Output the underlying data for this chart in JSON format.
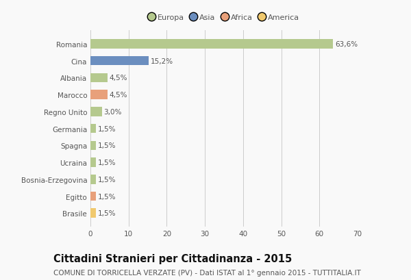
{
  "countries": [
    "Romania",
    "Cina",
    "Albania",
    "Marocco",
    "Regno Unito",
    "Germania",
    "Spagna",
    "Ucraina",
    "Bosnia-Erzegovina",
    "Egitto",
    "Brasile"
  ],
  "values": [
    63.6,
    15.2,
    4.5,
    4.5,
    3.0,
    1.5,
    1.5,
    1.5,
    1.5,
    1.5,
    1.5
  ],
  "labels": [
    "63,6%",
    "15,2%",
    "4,5%",
    "4,5%",
    "3,0%",
    "1,5%",
    "1,5%",
    "1,5%",
    "1,5%",
    "1,5%",
    "1,5%"
  ],
  "colors": [
    "#b5c98e",
    "#6b8ebf",
    "#b5c98e",
    "#e8a07a",
    "#b5c98e",
    "#b5c98e",
    "#b5c98e",
    "#b5c98e",
    "#b5c98e",
    "#e8a07a",
    "#f0c96e"
  ],
  "legend_labels": [
    "Europa",
    "Asia",
    "Africa",
    "America"
  ],
  "legend_colors": [
    "#b5c98e",
    "#6b8ebf",
    "#e8a07a",
    "#f0c96e"
  ],
  "xlim": [
    0,
    70
  ],
  "xticks": [
    0,
    10,
    20,
    30,
    40,
    50,
    60,
    70
  ],
  "title": "Cittadini Stranieri per Cittadinanza - 2015",
  "subtitle": "COMUNE DI TORRICELLA VERZATE (PV) - Dati ISTAT al 1° gennaio 2015 - TUTTITALIA.IT",
  "bg_color": "#f9f9f9",
  "grid_color": "#cccccc",
  "bar_height": 0.55,
  "title_fontsize": 10.5,
  "subtitle_fontsize": 7.5,
  "label_fontsize": 7.5,
  "tick_fontsize": 7.5,
  "legend_fontsize": 8.0
}
